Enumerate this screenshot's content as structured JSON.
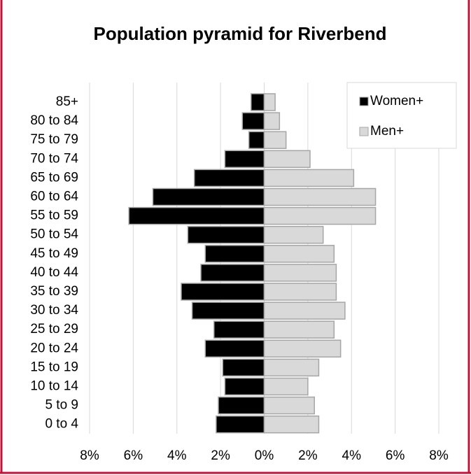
{
  "chart_data": {
    "type": "pyramid",
    "title": "Population pyramid for Riverbend",
    "categories": [
      "85+",
      "80 to 84",
      "75 to 79",
      "70 to 74",
      "65 to 69",
      "60 to 64",
      "55 to 59",
      "50 to 54",
      "45 to 49",
      "40 to 44",
      "35 to 39",
      "30 to 34",
      "25 to 29",
      "20 to 24",
      "15 to 19",
      "10 to 14",
      "5 to 9",
      "0 to 4"
    ],
    "series": [
      {
        "name": "Women+",
        "color": "#000000",
        "values": [
          0.6,
          1.0,
          0.7,
          1.8,
          3.2,
          5.1,
          6.2,
          3.5,
          2.7,
          2.9,
          3.8,
          3.3,
          2.3,
          2.7,
          1.9,
          1.8,
          2.1,
          2.2
        ]
      },
      {
        "name": "Men+",
        "color": "#d9d9d9",
        "values": [
          0.5,
          0.7,
          1.0,
          2.1,
          4.1,
          5.1,
          5.1,
          2.7,
          3.2,
          3.3,
          3.3,
          3.7,
          3.2,
          3.5,
          2.5,
          2.0,
          2.3,
          2.5
        ]
      }
    ],
    "xlim": [
      -8,
      8
    ],
    "xticks": [
      {
        "value": -8,
        "label": "8%"
      },
      {
        "value": -6,
        "label": "6%"
      },
      {
        "value": -4,
        "label": "4%"
      },
      {
        "value": -2,
        "label": "2%"
      },
      {
        "value": 0,
        "label": "0%"
      },
      {
        "value": 2,
        "label": "2%"
      },
      {
        "value": 4,
        "label": "4%"
      },
      {
        "value": 6,
        "label": "6%"
      },
      {
        "value": 8,
        "label": "8%"
      }
    ],
    "grid": true,
    "legend": "top-right"
  }
}
